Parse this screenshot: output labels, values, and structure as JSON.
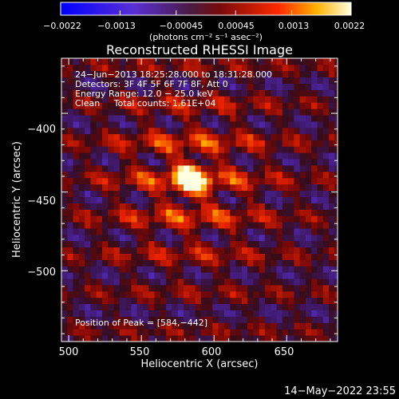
{
  "chart_data": {
    "type": "heatmap",
    "title": "Reconstructed RHESSI Image",
    "xlabel": "Heliocentric X (arcsec)",
    "ylabel": "Heliocentric Y (arcsec)",
    "xlim": [
      495,
      685
    ],
    "ylim": [
      -545,
      -365
    ],
    "x_ticks": [
      "500",
      "550",
      "600",
      "650"
    ],
    "y_ticks": [
      "−400",
      "−450",
      "−500"
    ],
    "colorbar": {
      "ticks": [
        "−0.0022",
        "−0.0013",
        "−0.00045",
        "0.00045",
        "0.0013",
        "0.0022"
      ],
      "label": "(photons cm⁻² s⁻¹ asec⁻²)",
      "range": [
        -0.0022,
        0.0022
      ]
    },
    "peak_position": [
      584,
      -442
    ],
    "annotations": {
      "time_range": "24−Jun−2013 18:25:28.000 to 18:31:28.000",
      "detectors": "Detectors: 3F 4F 5F 6F 7F 8F, Att 0",
      "energy_range": "Energy Range: 12.0 − 25.0 keV",
      "method": "Clean     Total counts: 1.61E+04",
      "peak": "Position of Peak = [584,−442]"
    }
  },
  "footer": {
    "timestamp": "14−May−2022 23:55"
  }
}
